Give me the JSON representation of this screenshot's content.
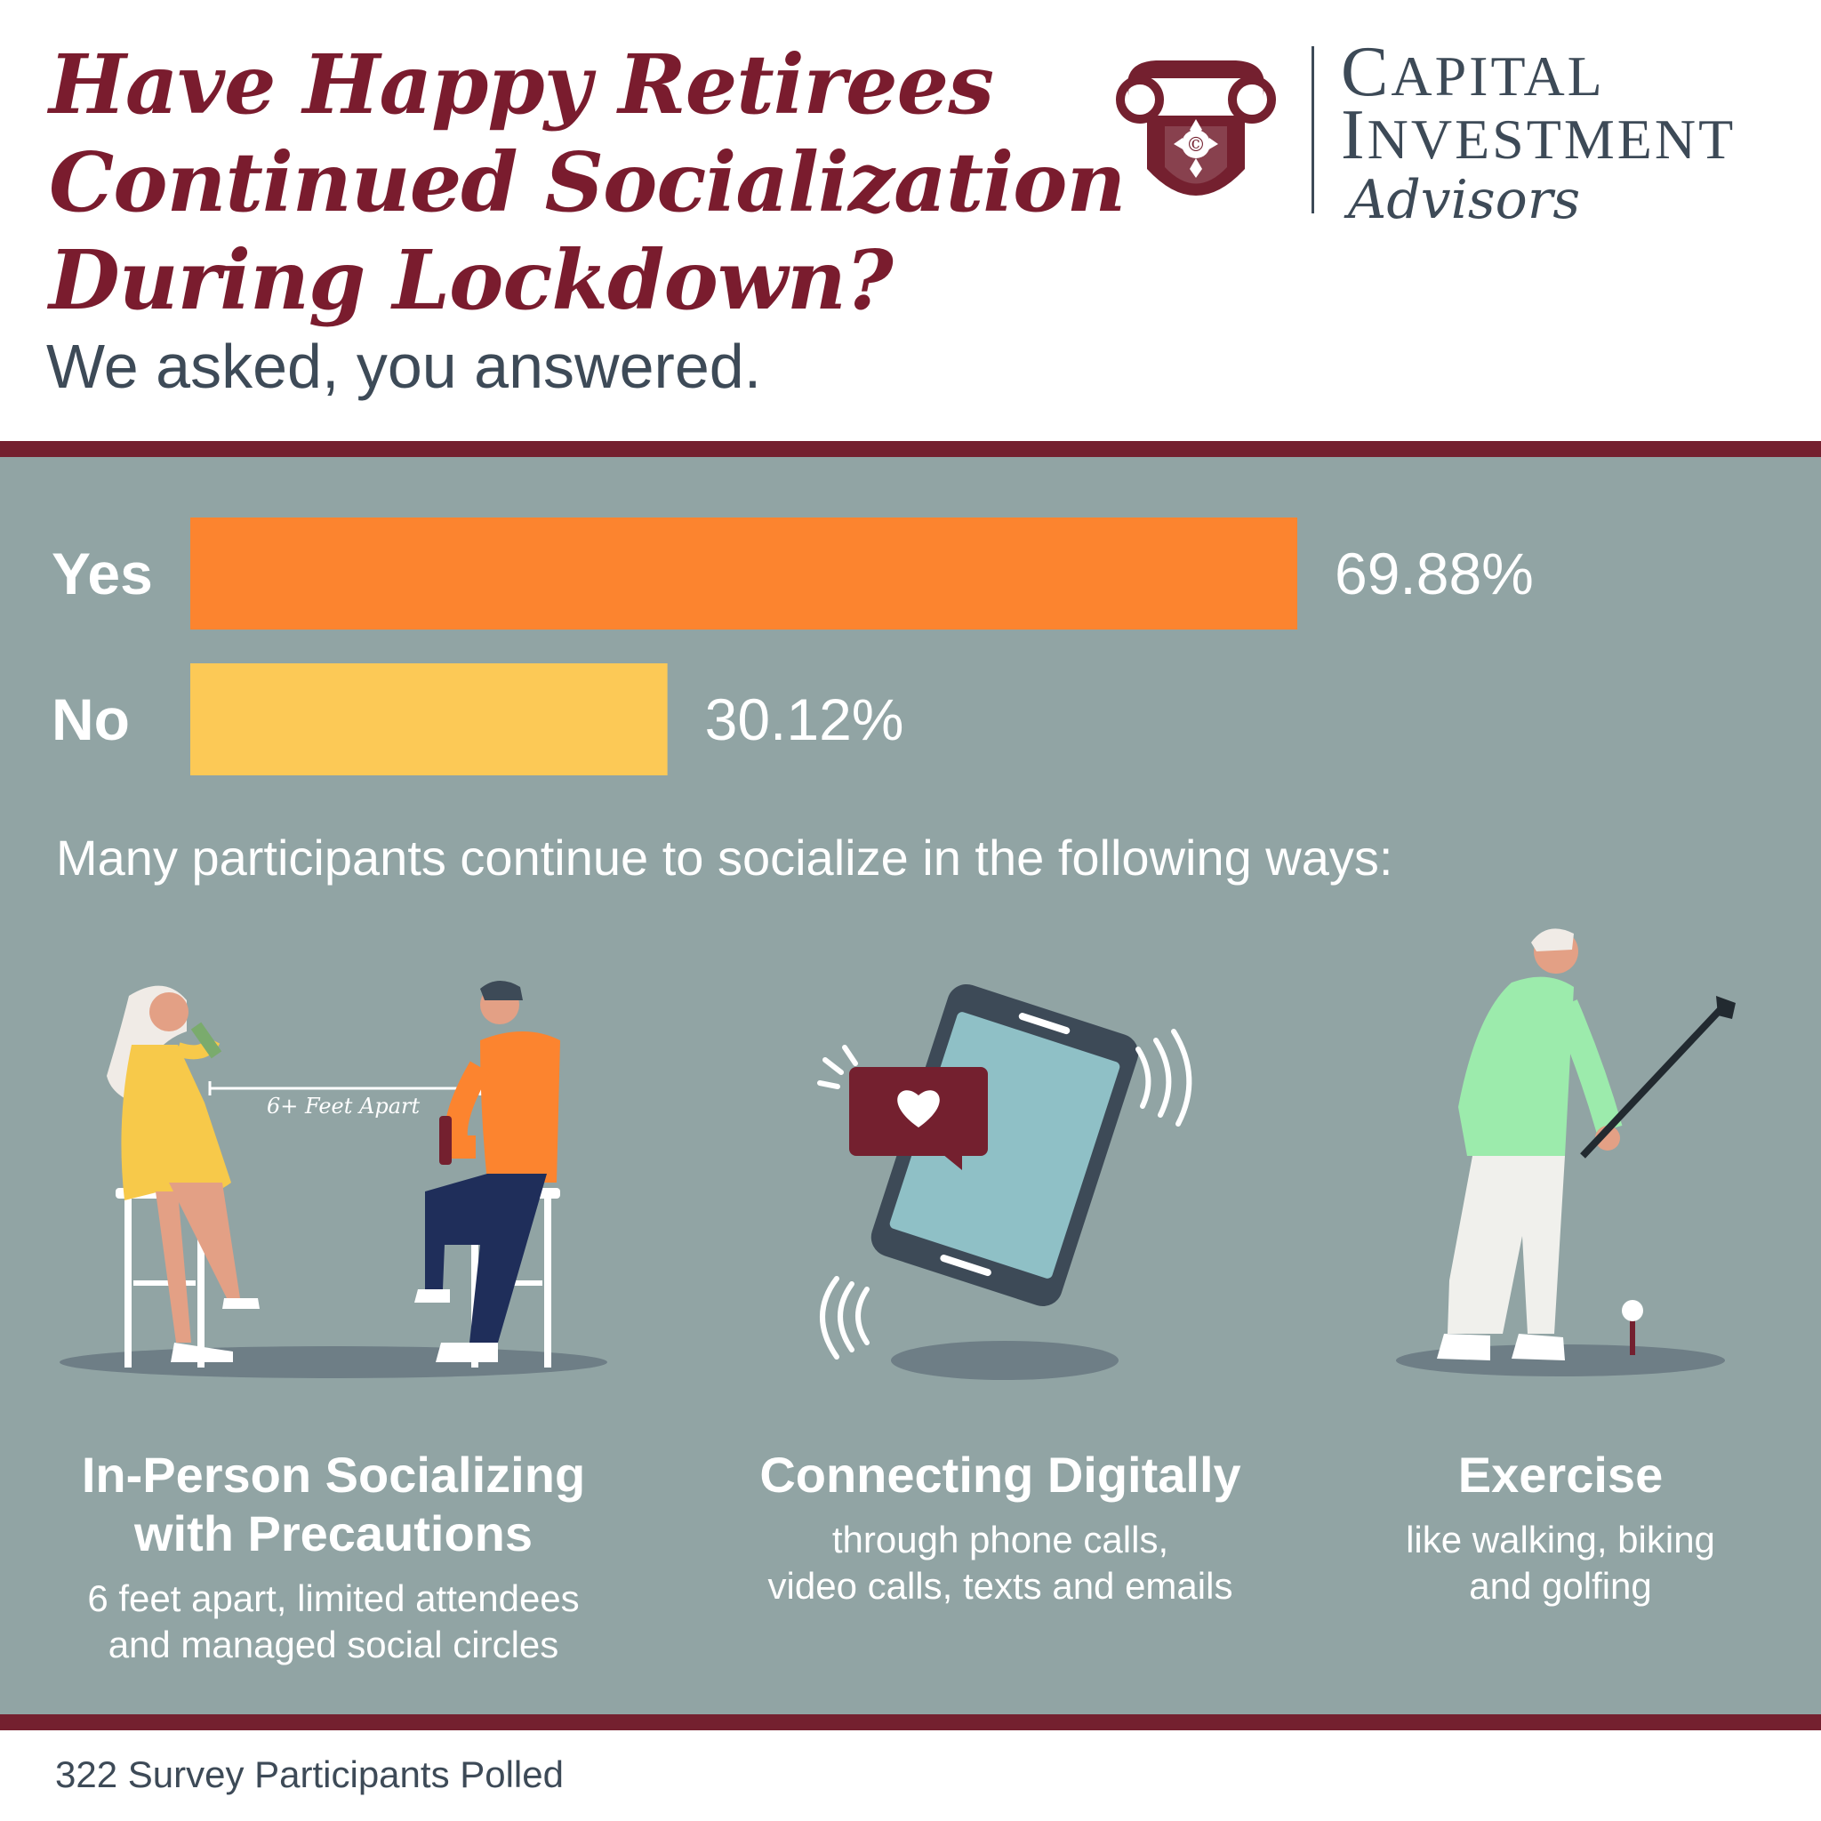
{
  "header": {
    "title_lines": [
      "Have Happy Retirees",
      "Continued Socialization",
      "During Lockdown?"
    ],
    "subtitle": "We asked, you answered."
  },
  "logo": {
    "line1_cap": "C",
    "line1_rest": "APITAL",
    "line2_cap": "I",
    "line2_rest": "NVESTMENT",
    "line3": "Advisors"
  },
  "colors": {
    "maroon": "#74202f",
    "panel": "#91a4a4",
    "yes_bar": "#fc842f",
    "no_bar": "#fcc956",
    "text_dark": "#3d4a57"
  },
  "chart_data": {
    "type": "bar",
    "orientation": "horizontal",
    "categories": [
      "Yes",
      "No"
    ],
    "values": [
      69.88,
      30.12
    ],
    "value_labels": [
      "69.88%",
      "30.12%"
    ],
    "colors": [
      "#fc842f",
      "#fcc956"
    ],
    "xlim": [
      0,
      100
    ],
    "grid": false
  },
  "lead_text": "Many participants continue to socialize in the following ways:",
  "illustration": {
    "distance_label": "6+ Feet Apart"
  },
  "columns": [
    {
      "heading_lines": [
        "In-Person Socializing",
        "with Precautions"
      ],
      "body_lines": [
        "6 feet apart, limited attendees",
        "and managed social circles"
      ],
      "icon": "people-at-bar-icon"
    },
    {
      "heading_lines": [
        "Connecting Digitally"
      ],
      "body_lines": [
        "through phone calls,",
        "video calls, texts and emails"
      ],
      "icon": "smartphone-icon"
    },
    {
      "heading_lines": [
        "Exercise"
      ],
      "body_lines": [
        "like walking, biking",
        "and golfing"
      ],
      "icon": "golfer-icon"
    }
  ],
  "footer": {
    "text": "322 Survey Participants Polled"
  }
}
